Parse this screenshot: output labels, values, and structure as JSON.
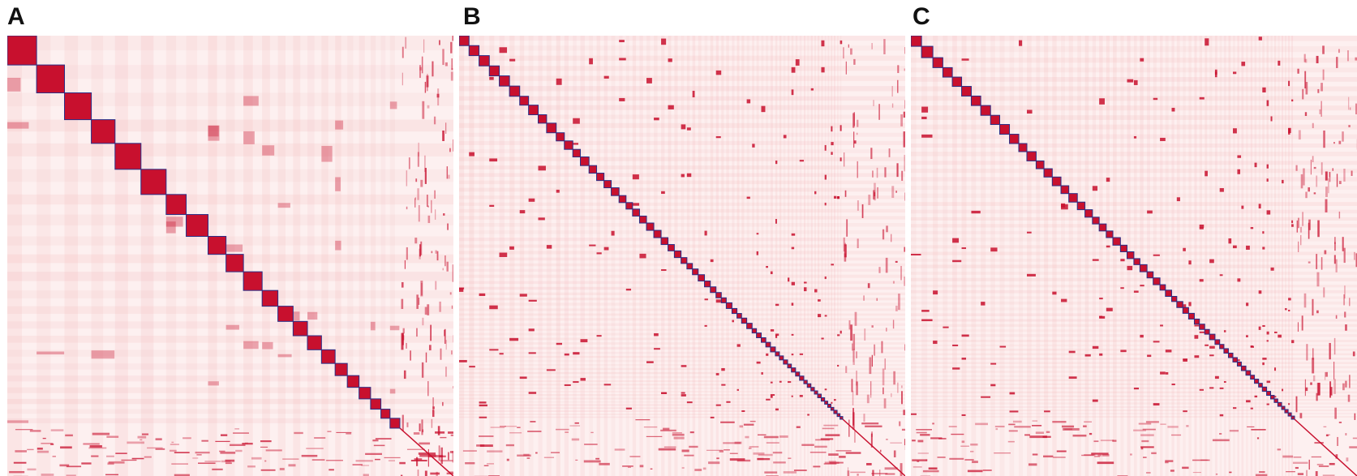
{
  "figure": {
    "panels": [
      {
        "label": "A",
        "kind": "hic-contact-map",
        "chromosome_blocks": 22,
        "scaffolds_assigned": false
      },
      {
        "label": "B",
        "kind": "hic-contact-map",
        "chromosome_blocks": 64,
        "scaffolds_assigned": true
      },
      {
        "label": "C",
        "kind": "hic-contact-map",
        "chromosome_blocks": 60,
        "scaffolds_assigned": true
      }
    ]
  },
  "colors": {
    "background": "#ffffff",
    "contact_low": "#fbe3e3",
    "contact_mid": "#f3b6b8",
    "contact_high": "#c8102e",
    "block_outline": "#2b2f86"
  }
}
